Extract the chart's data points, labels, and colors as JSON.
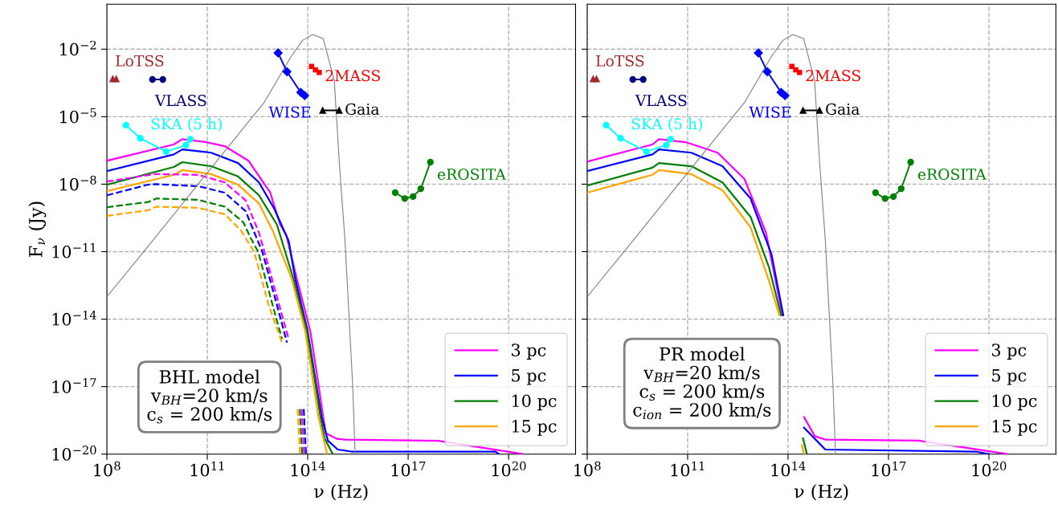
{
  "chart_data": [
    {
      "type": "line",
      "xlabel": "ν (Hz)",
      "ylabel": "F$_{ν}$ (Jy)",
      "log": "xy",
      "grid": true,
      "legend": "bottom right",
      "xlim": [
        100000000.0,
        1e+22
      ],
      "ylim": [
        1e-20,
        1
      ],
      "xticks": [
        {
          "value": 100000000.0,
          "label": "10$^{8}$"
        },
        {
          "value": 100000000000.0,
          "label": "10$^{11}$"
        },
        {
          "value": 100000000000000.0,
          "label": "10$^{14}$"
        },
        {
          "value": 1e+17,
          "label": "10$^{17}$"
        },
        {
          "value": 1e+20,
          "label": "10$^{20}$"
        }
      ],
      "yticks": [
        {
          "value": 1e-20,
          "label": "10$^{−20}$"
        },
        {
          "value": 1e-17,
          "label": "10$^{−17}$"
        },
        {
          "value": 1e-14,
          "label": "10$^{−14}$"
        },
        {
          "value": 1e-11,
          "label": "10$^{−11}$"
        },
        {
          "value": 1e-08,
          "label": "10$^{−8}$"
        },
        {
          "value": 1e-05,
          "label": "10$^{−5}$"
        },
        {
          "value": 0.01,
          "label": "10$^{−2}$"
        }
      ],
      "annotations": [
        "BHL model\nv$_{BH}$=20 km/s\nc$_{s}$ = 200 km/s"
      ],
      "series": [
        {
          "name": "3 pc",
          "color": "#ff00ff",
          "line_style": "solid",
          "marker": "none",
          "x": [
            100000000.0,
            10000000000.0,
            18000000000.0,
            93000000000.0,
            330000000000.0,
            1700000000000.0,
            7600000000000.0,
            15000000000000.0,
            23000000000000.0,
            47000000000000.0,
            120000000000000.0,
            210000000000000.0,
            290000000000000.0,
            350000000000000.0,
            740000000000000.0,
            1300000000000000.0,
            8e+17,
            2.8e+20
          ],
          "values": [
            1.1e-07,
            5.8e-07,
            1e-06,
            7.4e-07,
            4.9e-07,
            1.1e-07,
            4.2e-09,
            1.6e-10,
            5.4e-11,
            6.5e-13,
            2.8e-15,
            1.2e-17,
            4.4e-19,
            8.5e-20,
            4.8e-20,
            4.4e-20,
            3.9e-20,
            1e-20
          ]
        },
        {
          "name": "5 pc",
          "color": "#0000ff",
          "line_style": "solid",
          "marker": "none",
          "x": [
            100000000.0,
            10000000000.0,
            18000000000.0,
            130000000000.0,
            830000000000.0,
            3500000000000.0,
            10000000000000.0,
            27000000000000.0,
            42000000000000.0,
            100000000000000.0,
            180000000000000.0,
            260000000000000.0,
            400000000000000.0,
            790000000000000.0,
            2000000000000000.0,
            4e+19,
            5.2e+19
          ],
          "values": [
            3.8e-08,
            2.1e-07,
            3.5e-07,
            2.5e-07,
            8.7e-08,
            1.2e-08,
            8.1e-10,
            3e-11,
            6.5e-13,
            2.8e-15,
            1.2e-17,
            4.4e-19,
            4e-20,
            1.6e-20,
            1.3e-20,
            1.3e-20,
            1e-20
          ]
        },
        {
          "name": "10 pc",
          "color": "#008000",
          "line_style": "solid",
          "marker": "none",
          "x": [
            100000000.0,
            10000000000.0,
            18000000000.0,
            130000000000.0,
            830000000000.0,
            3500000000000.0,
            12000000000000.0,
            37000000000000.0,
            95000000000000.0,
            170000000000000.0,
            240000000000000.0,
            320000000000000.0,
            560000000000000.0
          ],
          "values": [
            9.5e-09,
            5.8e-08,
            9.5e-08,
            6.3e-08,
            2.2e-08,
            3.2e-09,
            1.6e-10,
            6.5e-13,
            2.8e-15,
            1.2e-17,
            4.4e-19,
            5e-20,
            1e-20
          ]
        },
        {
          "name": "15 pc",
          "color": "#ffa500",
          "line_style": "solid",
          "marker": "none",
          "x": [
            100000000.0,
            10000000000.0,
            18000000000.0,
            130000000000.0,
            830000000000.0,
            3500000000000.0,
            8900000000000.0,
            33000000000000.0,
            85000000000000.0,
            150000000000000.0,
            210000000000000.0,
            380000000000000.0
          ],
          "values": [
            4.9e-09,
            2.6e-08,
            4.2e-08,
            2.8e-08,
            9.5e-09,
            1.4e-09,
            8.9e-11,
            6.5e-13,
            2.8e-15,
            1.2e-17,
            4.4e-19,
            1e-20
          ]
        },
        {
          "color": "#ff00ff",
          "line_style": "dashed",
          "marker": "none",
          "x": [
            100000000.0,
            1900000000.0,
            3000000000.0,
            54000000000.0,
            330000000000.0,
            1400000000000.0,
            3500000000000.0,
            5100000000000.0,
            14000000000000.0,
            27000000000000.0,
            40000000000000.0,
            66000000000000.0,
            78000000000000.0
          ],
          "values": [
            1.3e-08,
            2.6e-08,
            2.8e-08,
            2.6e-08,
            1.2e-08,
            1.9e-09,
            6.9e-11,
            1e-11,
            4.3e-14,
            1.3e-15,
            null,
            1e-18,
            1e-20
          ]
        },
        {
          "color": "#0000ff",
          "line_style": "dashed",
          "marker": "none",
          "x": [
            100000000.0,
            1700000000.0,
            3000000000.0,
            54000000000.0,
            330000000000.0,
            1400000000000.0,
            3000000000000.0,
            4400000000000.0,
            12000000000000.0,
            24000000000000.0,
            40000000000000.0,
            76000000000000.0,
            89000000000000.0
          ],
          "values": [
            3.2e-09,
            9.5e-09,
            1e-08,
            8.1e-09,
            4.2e-09,
            6.3e-10,
            3.9e-11,
            1e-11,
            4.3e-14,
            9.1e-16,
            null,
            1e-18,
            1e-20
          ]
        },
        {
          "color": "#008000",
          "line_style": "dashed",
          "marker": "none",
          "x": [
            100000000.0,
            1700000000.0,
            3000000000.0,
            54000000000.0,
            330000000000.0,
            1200000000000.0,
            2000000000000.0,
            3300000000000.0,
            8900000000000.0,
            17000000000000.0,
            40000000000000.0,
            58000000000000.0,
            68000000000000.0
          ],
          "values": [
            9.5e-10,
            1.6e-09,
            2.3e-09,
            2e-09,
            1e-09,
            2e-10,
            3.9e-11,
            1e-11,
            4.3e-14,
            1.3e-15,
            null,
            1e-18,
            1e-20
          ]
        },
        {
          "color": "#ffa500",
          "line_style": "dashed",
          "marker": "none",
          "x": [
            100000000.0,
            1700000000.0,
            3000000000.0,
            54000000000.0,
            330000000000.0,
            1000000000000.0,
            2500000000000.0,
            6800000000000.0,
            17000000000000.0,
            40000000000000.0,
            50000000000000.0,
            59000000000000.0
          ],
          "values": [
            3.9e-10,
            6.9e-10,
            1e-09,
            8.9e-10,
            4.6e-10,
            8.9e-11,
            1e-11,
            4.3e-14,
            9.1e-16,
            null,
            1e-18,
            1e-20
          ]
        },
        {
          "color": "#808080",
          "line_style": "solid",
          "marker": "none",
          "x": [
            100000000.0,
            2300000000.0,
            110000000000.0,
            5100000000000.0,
            32000000000000.0,
            71000000000000.0,
            140000000000000.0,
            290000000000000.0,
            620000000000000.0,
            870000000000000.0,
            1300000000000000.0,
            2200000000000000.0,
            2600000000000000.0
          ],
          "values": [
            9.8e-14,
            3e-11,
            3.8e-08,
            4.5e-05,
            0.0048,
            0.025,
            0.045,
            0.03,
            0.00041,
            1.1e-07,
            3e-11,
            1.2e-17,
            1e-20
          ]
        },
        {
          "name": "LoTSS",
          "color": "#a52a2a",
          "marker": "triangle",
          "line_style": "solid",
          "x": [
            150000000.0,
            190000000.0
          ],
          "values": [
            0.00048,
            0.00048
          ]
        },
        {
          "name": "VLASS",
          "color": "#000080",
          "marker": "circle",
          "line_style": "solid",
          "x": [
            2300000000.0,
            4700000000.0
          ],
          "values": [
            0.00045,
            0.00045
          ]
        },
        {
          "name": "SKA (5 h)",
          "color": "#00ffff",
          "marker": "circle",
          "line_style": "solid",
          "x": [
            370000000.0,
            1000000000.0,
            5900000000.0,
            23000000000.0,
            31000000000.0
          ],
          "values": [
            4.2e-06,
            1.1e-06,
            2.8e-07,
            5.4e-07,
            1e-06
          ]
        },
        {
          "name": "WISE",
          "color": "#0000ff",
          "marker": "diamond",
          "line_style": "solid",
          "x": [
            13000000000000.0,
            24000000000000.0,
            62000000000000.0,
            81000000000000.0
          ],
          "values": [
            0.0068,
            0.001,
            0.00012,
            8.7e-05
          ]
        },
        {
          "name": "2MASS",
          "type": "scatter",
          "color": "#ff0000",
          "marker": "square",
          "x": [
            130000000000000.0,
            170000000000000.0,
            220000000000000.0
          ],
          "values": [
            0.0017,
            0.0012,
            0.00093
          ]
        },
        {
          "name": "Gaia",
          "color": "#000000",
          "marker": "triangle",
          "line_style": "solid",
          "x": [
            280000000000000.0,
            870000000000000.0
          ],
          "values": [
            1.9e-05,
            1.9e-05
          ]
        },
        {
          "name": "eROSITA",
          "color": "#008000",
          "marker": "circle",
          "line_style": "solid",
          "x": [
            4.1e+16,
            7.9e+16,
            1.4e+17,
            2.4e+17,
            4.6e+17
          ],
          "values": [
            4.2e-09,
            2.3e-09,
            2.8e-09,
            6.3e-09,
            9.5e-08
          ]
        }
      ]
    },
    {
      "type": "line",
      "xlabel": "ν (Hz)",
      "log": "xy",
      "grid": true,
      "legend": "bottom right",
      "tick_labels": "x",
      "xlim": [
        100000000.0,
        1e+22
      ],
      "ylim": [
        1e-20,
        1
      ],
      "xticks": [
        {
          "value": 100000000.0,
          "label": "10$^{8}$"
        },
        {
          "value": 100000000000.0,
          "label": "10$^{11}$"
        },
        {
          "value": 100000000000000.0,
          "label": "10$^{14}$"
        },
        {
          "value": 1e+17,
          "label": "10$^{17}$"
        },
        {
          "value": 1e+20,
          "label": "10$^{20}$"
        }
      ],
      "yticks": [
        {
          "value": 1e-20,
          "label": null
        },
        {
          "value": 1e-17,
          "label": null
        },
        {
          "value": 1e-14,
          "label": null
        },
        {
          "value": 1e-11,
          "label": null
        },
        {
          "value": 1e-08,
          "label": null
        },
        {
          "value": 1e-05,
          "label": null
        },
        {
          "value": 0.01,
          "label": null
        }
      ],
      "annotations": [
        "PR model\nv$_{BH}$=20 km/s\nc$_{s}$ = 200 km/s\nc$_{ion}$ = 200 km/s"
      ],
      "series": [
        {
          "name": "3 pc",
          "color": "#ff00ff",
          "line_style": "solid",
          "marker": "none",
          "x": [
            100000000.0,
            8900000000.0,
            14000000000.0,
            87000000000.0,
            790000000000.0,
            5000000000000.0,
            22000000000000.0,
            68000000000000.0,
            130000000000000.0,
            300000000000000.0,
            630000000000000.0,
            1300000000000000.0,
            8e+17,
            3.7e+20
          ],
          "values": [
            1e-07,
            5.8e-07,
            1e-06,
            7.4e-07,
            2.5e-07,
            1.7e-08,
            6.9e-11,
            1.5e-14,
            null,
            4.4e-19,
            6.3e-20,
            4.4e-20,
            4e-20,
            1e-20
          ]
        },
        {
          "name": "5 pc",
          "color": "#0000ff",
          "line_style": "solid",
          "marker": "none",
          "x": [
            100000000.0,
            8900000000.0,
            14000000000.0,
            130000000000.0,
            1100000000000.0,
            7600000000000.0,
            32000000000000.0,
            72000000000000.0,
            130000000000000.0,
            300000000000000.0,
            1300000000000000.0,
            4e+19,
            1e+20
          ],
          "values": [
            3.8e-08,
            2.1e-07,
            3.5e-07,
            2.5e-07,
            6.3e-08,
            2.3e-09,
            7.6e-12,
            1.5e-14,
            null,
            1.5e-19,
            1.6e-20,
            1.3e-20,
            1e-20
          ]
        },
        {
          "name": "10 pc",
          "color": "#008000",
          "line_style": "solid",
          "marker": "none",
          "x": [
            100000000.0,
            8900000000.0,
            14000000000.0,
            130000000000.0,
            1100000000000.0,
            7600000000000.0,
            27000000000000.0,
            62000000000000.0,
            130000000000000.0,
            280000000000000.0,
            360000000000000.0
          ],
          "values": [
            8.7e-09,
            5.4e-08,
            8.7e-08,
            6.3e-08,
            1.2e-08,
            3.5e-10,
            2e-12,
            1.5e-14,
            null,
            5e-20,
            1.1e-20
          ]
        },
        {
          "name": "15 pc",
          "color": "#ffa500",
          "line_style": "solid",
          "marker": "none",
          "x": [
            100000000.0,
            8900000000.0,
            14000000000.0,
            130000000000.0,
            1100000000000.0,
            7600000000000.0,
            27000000000000.0,
            55000000000000.0,
            130000000000000.0,
            260000000000000.0,
            300000000000000.0
          ],
          "values": [
            4.2e-09,
            2.6e-08,
            4.2e-08,
            2.8e-08,
            5.4e-09,
            1.2e-10,
            5e-13,
            1.5e-14,
            null,
            2.5e-20,
            1e-20
          ]
        },
        {
          "color": "#808080",
          "line_style": "solid",
          "marker": "none",
          "x": [
            100000000.0,
            2300000000.0,
            110000000000.0,
            5100000000000.0,
            32000000000000.0,
            71000000000000.0,
            140000000000000.0,
            290000000000000.0,
            620000000000000.0,
            870000000000000.0,
            1300000000000000.0,
            2200000000000000.0,
            2600000000000000.0
          ],
          "values": [
            9.8e-14,
            3e-11,
            3.8e-08,
            4.5e-05,
            0.0048,
            0.025,
            0.045,
            0.03,
            0.00041,
            1.1e-07,
            3e-11,
            1.2e-17,
            1e-20
          ]
        },
        {
          "name": "LoTSS",
          "color": "#a52a2a",
          "marker": "triangle",
          "line_style": "solid",
          "x": [
            150000000.0,
            190000000.0
          ],
          "values": [
            0.00048,
            0.00048
          ]
        },
        {
          "name": "VLASS",
          "color": "#000080",
          "marker": "circle",
          "line_style": "solid",
          "x": [
            2300000000.0,
            4700000000.0
          ],
          "values": [
            0.00045,
            0.00045
          ]
        },
        {
          "name": "SKA (5 h)",
          "color": "#00ffff",
          "marker": "circle",
          "line_style": "solid",
          "x": [
            370000000.0,
            1000000000.0,
            5900000000.0,
            23000000000.0,
            31000000000.0
          ],
          "values": [
            4.2e-06,
            1.1e-06,
            2.8e-07,
            5.4e-07,
            1e-06
          ]
        },
        {
          "name": "WISE",
          "color": "#0000ff",
          "marker": "diamond",
          "line_style": "solid",
          "x": [
            13000000000000.0,
            24000000000000.0,
            62000000000000.0,
            81000000000000.0
          ],
          "values": [
            0.0068,
            0.001,
            0.00012,
            8.7e-05
          ]
        },
        {
          "name": "2MASS",
          "type": "scatter",
          "color": "#ff0000",
          "marker": "square",
          "x": [
            130000000000000.0,
            170000000000000.0,
            220000000000000.0
          ],
          "values": [
            0.0017,
            0.0012,
            0.00093
          ]
        },
        {
          "name": "Gaia",
          "color": "#000000",
          "marker": "triangle",
          "line_style": "solid",
          "x": [
            280000000000000.0,
            870000000000000.0
          ],
          "values": [
            1.9e-05,
            1.9e-05
          ]
        },
        {
          "name": "eROSITA",
          "color": "#008000",
          "marker": "circle",
          "line_style": "solid",
          "x": [
            4.1e+16,
            7.9e+16,
            1.4e+17,
            2.4e+17,
            4.6e+17
          ],
          "values": [
            4.2e-09,
            2.3e-09,
            2.8e-09,
            6.3e-09,
            9.5e-08
          ]
        }
      ]
    }
  ]
}
